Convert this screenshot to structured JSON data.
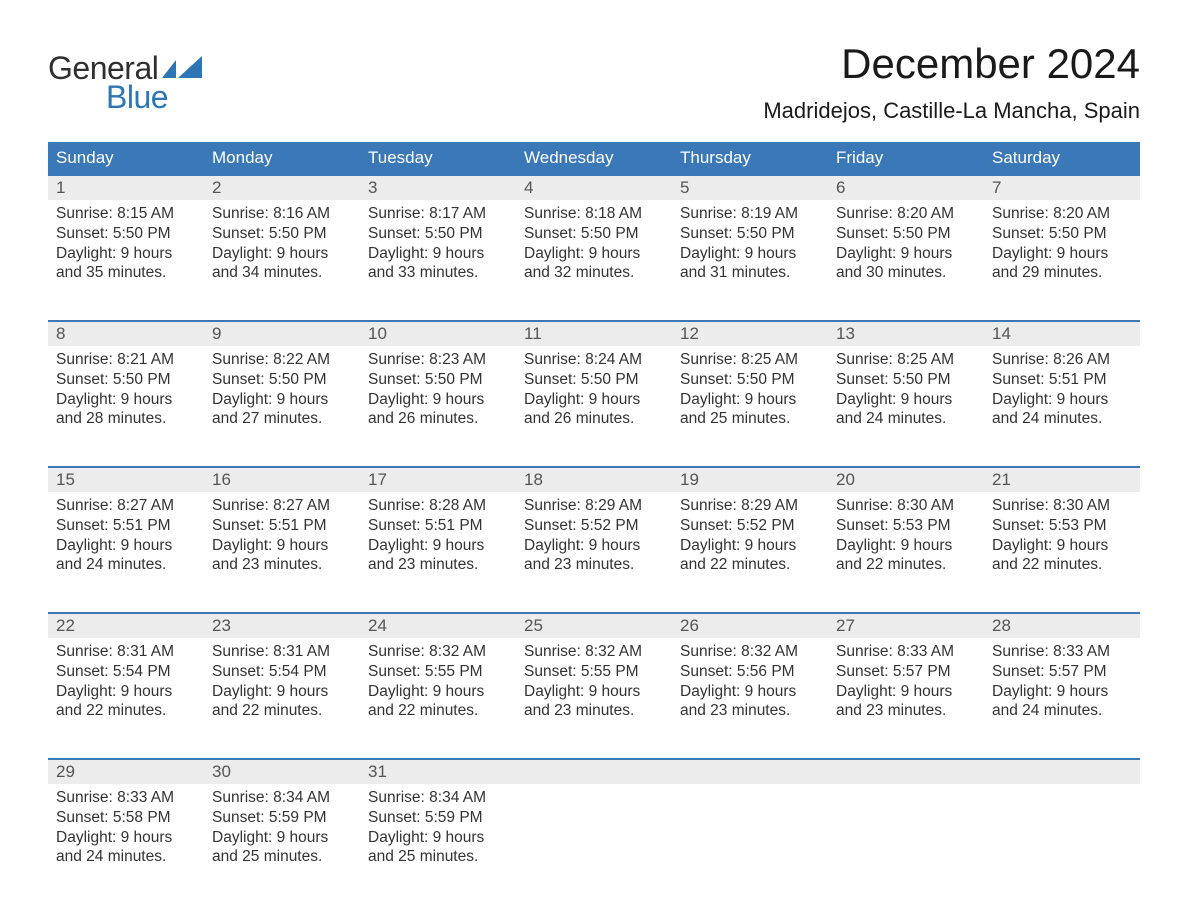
{
  "logo": {
    "text_general": "General",
    "text_blue": "Blue",
    "icon_color": "#2e75b6",
    "text_general_color": "#2f2f2f",
    "text_blue_color": "#2e75b6"
  },
  "title": "December 2024",
  "location": "Madridejos, Castille-La Mancha, Spain",
  "colors": {
    "header_bg": "#3b78b8",
    "header_text": "#ffffff",
    "daynum_bg": "#ececec",
    "daynum_text": "#555555",
    "body_text": "#333333",
    "week_border": "#3b78b8",
    "page_bg": "#ffffff"
  },
  "fonts": {
    "title_size_pt": 42,
    "location_size_pt": 22,
    "dayheader_size_pt": 17,
    "daynum_size_pt": 17,
    "daydata_size_pt": 15.5,
    "logo_size_pt": 32
  },
  "day_headers": [
    "Sunday",
    "Monday",
    "Tuesday",
    "Wednesday",
    "Thursday",
    "Friday",
    "Saturday"
  ],
  "weeks": [
    [
      {
        "num": "1",
        "sunrise": "Sunrise: 8:15 AM",
        "sunset": "Sunset: 5:50 PM",
        "day1": "Daylight: 9 hours",
        "day2": "and 35 minutes."
      },
      {
        "num": "2",
        "sunrise": "Sunrise: 8:16 AM",
        "sunset": "Sunset: 5:50 PM",
        "day1": "Daylight: 9 hours",
        "day2": "and 34 minutes."
      },
      {
        "num": "3",
        "sunrise": "Sunrise: 8:17 AM",
        "sunset": "Sunset: 5:50 PM",
        "day1": "Daylight: 9 hours",
        "day2": "and 33 minutes."
      },
      {
        "num": "4",
        "sunrise": "Sunrise: 8:18 AM",
        "sunset": "Sunset: 5:50 PM",
        "day1": "Daylight: 9 hours",
        "day2": "and 32 minutes."
      },
      {
        "num": "5",
        "sunrise": "Sunrise: 8:19 AM",
        "sunset": "Sunset: 5:50 PM",
        "day1": "Daylight: 9 hours",
        "day2": "and 31 minutes."
      },
      {
        "num": "6",
        "sunrise": "Sunrise: 8:20 AM",
        "sunset": "Sunset: 5:50 PM",
        "day1": "Daylight: 9 hours",
        "day2": "and 30 minutes."
      },
      {
        "num": "7",
        "sunrise": "Sunrise: 8:20 AM",
        "sunset": "Sunset: 5:50 PM",
        "day1": "Daylight: 9 hours",
        "day2": "and 29 minutes."
      }
    ],
    [
      {
        "num": "8",
        "sunrise": "Sunrise: 8:21 AM",
        "sunset": "Sunset: 5:50 PM",
        "day1": "Daylight: 9 hours",
        "day2": "and 28 minutes."
      },
      {
        "num": "9",
        "sunrise": "Sunrise: 8:22 AM",
        "sunset": "Sunset: 5:50 PM",
        "day1": "Daylight: 9 hours",
        "day2": "and 27 minutes."
      },
      {
        "num": "10",
        "sunrise": "Sunrise: 8:23 AM",
        "sunset": "Sunset: 5:50 PM",
        "day1": "Daylight: 9 hours",
        "day2": "and 26 minutes."
      },
      {
        "num": "11",
        "sunrise": "Sunrise: 8:24 AM",
        "sunset": "Sunset: 5:50 PM",
        "day1": "Daylight: 9 hours",
        "day2": "and 26 minutes."
      },
      {
        "num": "12",
        "sunrise": "Sunrise: 8:25 AM",
        "sunset": "Sunset: 5:50 PM",
        "day1": "Daylight: 9 hours",
        "day2": "and 25 minutes."
      },
      {
        "num": "13",
        "sunrise": "Sunrise: 8:25 AM",
        "sunset": "Sunset: 5:50 PM",
        "day1": "Daylight: 9 hours",
        "day2": "and 24 minutes."
      },
      {
        "num": "14",
        "sunrise": "Sunrise: 8:26 AM",
        "sunset": "Sunset: 5:51 PM",
        "day1": "Daylight: 9 hours",
        "day2": "and 24 minutes."
      }
    ],
    [
      {
        "num": "15",
        "sunrise": "Sunrise: 8:27 AM",
        "sunset": "Sunset: 5:51 PM",
        "day1": "Daylight: 9 hours",
        "day2": "and 24 minutes."
      },
      {
        "num": "16",
        "sunrise": "Sunrise: 8:27 AM",
        "sunset": "Sunset: 5:51 PM",
        "day1": "Daylight: 9 hours",
        "day2": "and 23 minutes."
      },
      {
        "num": "17",
        "sunrise": "Sunrise: 8:28 AM",
        "sunset": "Sunset: 5:51 PM",
        "day1": "Daylight: 9 hours",
        "day2": "and 23 minutes."
      },
      {
        "num": "18",
        "sunrise": "Sunrise: 8:29 AM",
        "sunset": "Sunset: 5:52 PM",
        "day1": "Daylight: 9 hours",
        "day2": "and 23 minutes."
      },
      {
        "num": "19",
        "sunrise": "Sunrise: 8:29 AM",
        "sunset": "Sunset: 5:52 PM",
        "day1": "Daylight: 9 hours",
        "day2": "and 22 minutes."
      },
      {
        "num": "20",
        "sunrise": "Sunrise: 8:30 AM",
        "sunset": "Sunset: 5:53 PM",
        "day1": "Daylight: 9 hours",
        "day2": "and 22 minutes."
      },
      {
        "num": "21",
        "sunrise": "Sunrise: 8:30 AM",
        "sunset": "Sunset: 5:53 PM",
        "day1": "Daylight: 9 hours",
        "day2": "and 22 minutes."
      }
    ],
    [
      {
        "num": "22",
        "sunrise": "Sunrise: 8:31 AM",
        "sunset": "Sunset: 5:54 PM",
        "day1": "Daylight: 9 hours",
        "day2": "and 22 minutes."
      },
      {
        "num": "23",
        "sunrise": "Sunrise: 8:31 AM",
        "sunset": "Sunset: 5:54 PM",
        "day1": "Daylight: 9 hours",
        "day2": "and 22 minutes."
      },
      {
        "num": "24",
        "sunrise": "Sunrise: 8:32 AM",
        "sunset": "Sunset: 5:55 PM",
        "day1": "Daylight: 9 hours",
        "day2": "and 22 minutes."
      },
      {
        "num": "25",
        "sunrise": "Sunrise: 8:32 AM",
        "sunset": "Sunset: 5:55 PM",
        "day1": "Daylight: 9 hours",
        "day2": "and 23 minutes."
      },
      {
        "num": "26",
        "sunrise": "Sunrise: 8:32 AM",
        "sunset": "Sunset: 5:56 PM",
        "day1": "Daylight: 9 hours",
        "day2": "and 23 minutes."
      },
      {
        "num": "27",
        "sunrise": "Sunrise: 8:33 AM",
        "sunset": "Sunset: 5:57 PM",
        "day1": "Daylight: 9 hours",
        "day2": "and 23 minutes."
      },
      {
        "num": "28",
        "sunrise": "Sunrise: 8:33 AM",
        "sunset": "Sunset: 5:57 PM",
        "day1": "Daylight: 9 hours",
        "day2": "and 24 minutes."
      }
    ],
    [
      {
        "num": "29",
        "sunrise": "Sunrise: 8:33 AM",
        "sunset": "Sunset: 5:58 PM",
        "day1": "Daylight: 9 hours",
        "day2": "and 24 minutes."
      },
      {
        "num": "30",
        "sunrise": "Sunrise: 8:34 AM",
        "sunset": "Sunset: 5:59 PM",
        "day1": "Daylight: 9 hours",
        "day2": "and 25 minutes."
      },
      {
        "num": "31",
        "sunrise": "Sunrise: 8:34 AM",
        "sunset": "Sunset: 5:59 PM",
        "day1": "Daylight: 9 hours",
        "day2": "and 25 minutes."
      },
      {
        "empty": true
      },
      {
        "empty": true
      },
      {
        "empty": true
      },
      {
        "empty": true
      }
    ]
  ]
}
